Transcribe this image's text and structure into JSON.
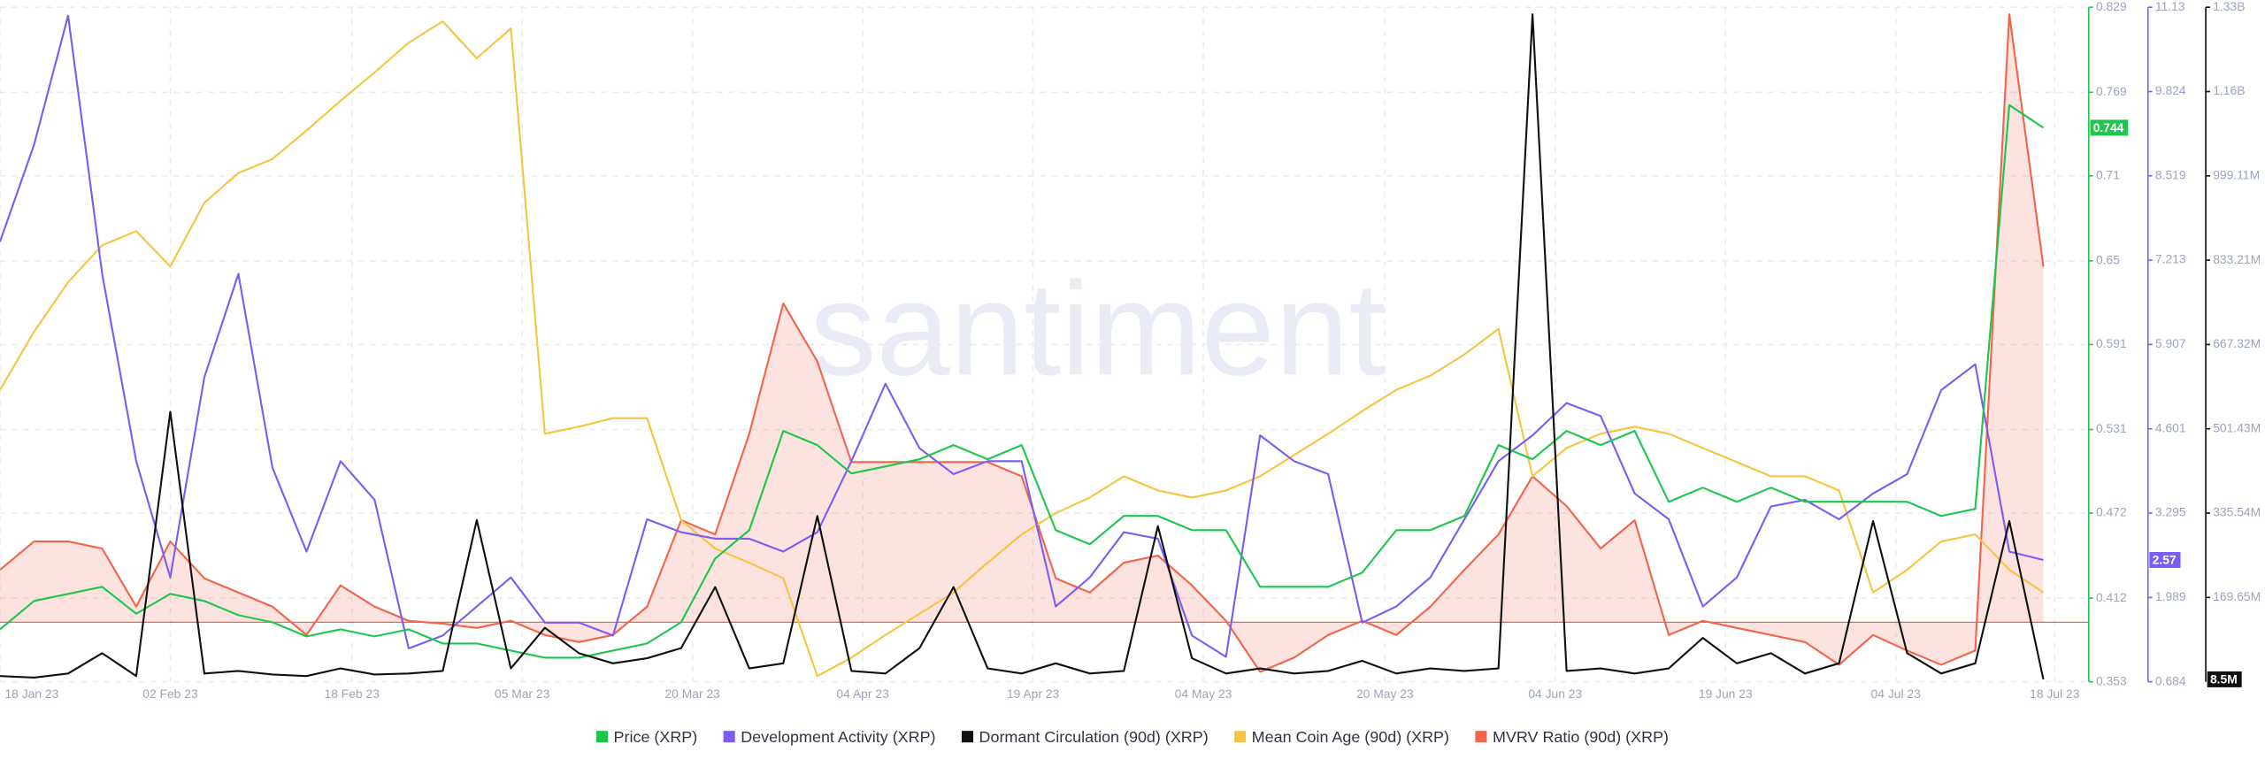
{
  "chart_data": {
    "type": "line",
    "watermark": "santiment",
    "x": [
      "2023-01-18",
      "2023-01-21",
      "2023-01-24",
      "2023-01-27",
      "2023-01-30",
      "2023-02-02",
      "2023-02-05",
      "2023-02-08",
      "2023-02-11",
      "2023-02-14",
      "2023-02-17",
      "2023-02-20",
      "2023-02-23",
      "2023-02-26",
      "2023-03-01",
      "2023-03-04",
      "2023-03-07",
      "2023-03-10",
      "2023-03-13",
      "2023-03-16",
      "2023-03-19",
      "2023-03-22",
      "2023-03-25",
      "2023-03-28",
      "2023-03-31",
      "2023-04-03",
      "2023-04-06",
      "2023-04-09",
      "2023-04-12",
      "2023-04-15",
      "2023-04-18",
      "2023-04-21",
      "2023-04-24",
      "2023-04-27",
      "2023-04-30",
      "2023-05-03",
      "2023-05-06",
      "2023-05-09",
      "2023-05-12",
      "2023-05-15",
      "2023-05-18",
      "2023-05-21",
      "2023-05-24",
      "2023-05-27",
      "2023-05-30",
      "2023-06-02",
      "2023-06-05",
      "2023-06-08",
      "2023-06-11",
      "2023-06-14",
      "2023-06-17",
      "2023-06-20",
      "2023-06-23",
      "2023-06-26",
      "2023-06-29",
      "2023-07-02",
      "2023-07-05",
      "2023-07-08",
      "2023-07-11",
      "2023-07-14",
      "2023-07-17"
    ],
    "xlim": [
      "2023-01-18",
      "2023-07-21"
    ],
    "xticks": [
      {
        "value": "2023-01-18",
        "label": "18 Jan 23"
      },
      {
        "value": "2023-02-02",
        "label": "02 Feb 23"
      },
      {
        "value": "2023-02-18",
        "label": "18 Feb 23"
      },
      {
        "value": "2023-03-05",
        "label": "05 Mar 23"
      },
      {
        "value": "2023-03-20",
        "label": "20 Mar 23"
      },
      {
        "value": "2023-04-04",
        "label": "04 Apr 23"
      },
      {
        "value": "2023-04-19",
        "label": "19 Apr 23"
      },
      {
        "value": "2023-05-04",
        "label": "04 May 23"
      },
      {
        "value": "2023-05-20",
        "label": "20 May 23"
      },
      {
        "value": "2023-06-04",
        "label": "04 Jun 23"
      },
      {
        "value": "2023-06-19",
        "label": "19 Jun 23"
      },
      {
        "value": "2023-07-04",
        "label": "04 Jul 23"
      },
      {
        "value": "2023-07-18",
        "label": "18 Jul 23"
      }
    ],
    "ylim": [
      0.353,
      0.829
    ],
    "yticks": [
      0.353,
      0.412,
      0.472,
      0.531,
      0.591,
      0.65,
      0.71,
      0.769,
      0.829
    ],
    "y2lim": [
      0.684,
      11.13
    ],
    "y2ticks": [
      0.684,
      1.989,
      3.295,
      4.601,
      5.907,
      7.213,
      8.519,
      9.824,
      11.13
    ],
    "y3lim": [
      3760000,
      1330890000
    ],
    "y3ticks": [
      {
        "value": 169650000,
        "label": "169.65M"
      },
      {
        "value": 335540000,
        "label": "335.54M"
      },
      {
        "value": 501430000,
        "label": "501.43M"
      },
      {
        "value": 667320000,
        "label": "667.32M"
      },
      {
        "value": 833210000,
        "label": "833.21M"
      },
      {
        "value": 999110000,
        "label": "999.11M"
      },
      {
        "value": 1164900000,
        "label": "1.16B"
      },
      {
        "value": 1330890000,
        "label": "1.33B"
      }
    ],
    "grid": true,
    "series": [
      {
        "name": "Price (XRP)",
        "color": "#1fc64d",
        "axis": "y",
        "last_label": true,
        "values": [
          0.39,
          0.41,
          0.415,
          0.42,
          0.401,
          0.415,
          0.41,
          0.4,
          0.395,
          0.385,
          0.39,
          0.385,
          0.39,
          0.38,
          0.38,
          0.375,
          0.37,
          0.37,
          0.375,
          0.38,
          0.395,
          0.44,
          0.46,
          0.53,
          0.52,
          0.5,
          0.505,
          0.51,
          0.52,
          0.51,
          0.52,
          0.46,
          0.45,
          0.47,
          0.47,
          0.46,
          0.46,
          0.42,
          0.42,
          0.42,
          0.43,
          0.46,
          0.46,
          0.47,
          0.52,
          0.51,
          0.53,
          0.52,
          0.53,
          0.48,
          0.49,
          0.48,
          0.49,
          0.48,
          0.48,
          0.48,
          0.48,
          0.47,
          0.475,
          0.76,
          0.744
        ]
      },
      {
        "name": "Development Activity (XRP)",
        "color": "#7b5cf5",
        "axis": "y2",
        "last_label": true,
        "values": [
          7.5,
          9.0,
          11.0,
          7.0,
          4.1,
          2.3,
          5.4,
          7.0,
          4.0,
          2.7,
          4.1,
          3.5,
          1.2,
          1.4,
          1.85,
          2.3,
          1.6,
          1.6,
          1.4,
          3.2,
          3.0,
          2.9,
          2.9,
          2.7,
          3.0,
          4.1,
          5.3,
          4.3,
          3.9,
          4.1,
          4.1,
          1.85,
          2.3,
          3.0,
          2.9,
          1.4,
          1.07,
          4.5,
          4.1,
          3.9,
          1.6,
          1.85,
          2.3,
          3.2,
          4.1,
          4.5,
          5.0,
          4.8,
          3.6,
          3.2,
          1.85,
          2.3,
          3.4,
          3.5,
          3.2,
          3.6,
          3.9,
          5.2,
          5.6,
          2.7,
          2.57
        ]
      },
      {
        "name": "Dormant Circulation (90d) (XRP)",
        "color": "#111111",
        "axis": "y3",
        "values": [
          15000000,
          12000000,
          20000000,
          60000000,
          15000000,
          535000000,
          20000000,
          25000000,
          18000000,
          15000000,
          30000000,
          18000000,
          20000000,
          25000000,
          322000000,
          30000000,
          110000000,
          60000000,
          40000000,
          50000000,
          70000000,
          190000000,
          30000000,
          40000000,
          330000000,
          25000000,
          20000000,
          70000000,
          190000000,
          30000000,
          20000000,
          40000000,
          20000000,
          25000000,
          310000000,
          50000000,
          20000000,
          30000000,
          20000000,
          25000000,
          45000000,
          20000000,
          30000000,
          25000000,
          30000000,
          1317000000,
          25000000,
          30000000,
          20000000,
          30000000,
          90000000,
          40000000,
          60000000,
          20000000,
          40000000,
          320000000,
          60000000,
          20000000,
          40000000,
          320000000,
          8500000
        ],
        "value_labels": [
          null,
          null,
          null,
          null,
          null,
          null,
          null,
          null,
          null,
          null,
          null,
          null,
          null,
          null,
          null,
          null,
          null,
          null,
          null,
          null,
          null,
          null,
          null,
          null,
          null,
          null,
          null,
          null,
          null,
          null,
          null,
          null,
          null,
          null,
          null,
          null,
          null,
          null,
          null,
          null,
          null,
          null,
          null,
          null,
          null,
          null,
          null,
          null,
          null,
          null,
          null,
          null,
          null,
          null,
          null,
          null,
          null,
          null,
          null,
          null,
          "8.5M"
        ]
      },
      {
        "name": "Mean Coin Age (90d) (XRP)",
        "color": "#f5c542",
        "axis": "y",
        "values": [
          0.559,
          0.6,
          0.635,
          0.661,
          0.671,
          0.646,
          0.691,
          0.712,
          0.722,
          0.742,
          0.763,
          0.783,
          0.804,
          0.819,
          0.793,
          0.814,
          0.528,
          0.533,
          0.539,
          0.539,
          0.467,
          0.447,
          0.437,
          0.426,
          0.357,
          0.37,
          0.386,
          0.401,
          0.416,
          0.437,
          0.457,
          0.472,
          0.483,
          0.498,
          0.488,
          0.483,
          0.488,
          0.498,
          0.513,
          0.528,
          0.544,
          0.559,
          0.569,
          0.584,
          0.602,
          0.498,
          0.518,
          0.528,
          0.533,
          0.528,
          0.518,
          0.508,
          0.498,
          0.498,
          0.488,
          0.416,
          0.432,
          0.452,
          0.457,
          0.432,
          0.416
        ]
      },
      {
        "name": "MVRV Ratio (90d) (XRP)",
        "color": "#f0654b",
        "axis": "y",
        "fill_to": 0.395,
        "values": [
          0.432,
          0.452,
          0.452,
          0.447,
          0.406,
          0.452,
          0.426,
          0.416,
          0.406,
          0.386,
          0.421,
          0.406,
          0.396,
          0.394,
          0.391,
          0.396,
          0.386,
          0.381,
          0.386,
          0.406,
          0.467,
          0.457,
          0.528,
          0.62,
          0.579,
          0.508,
          0.508,
          0.508,
          0.508,
          0.508,
          0.498,
          0.426,
          0.416,
          0.437,
          0.442,
          0.421,
          0.396,
          0.36,
          0.37,
          0.386,
          0.396,
          0.386,
          0.406,
          0.432,
          0.457,
          0.498,
          0.477,
          0.447,
          0.467,
          0.386,
          0.396,
          0.391,
          0.386,
          0.381,
          0.365,
          0.386,
          0.375,
          0.365,
          0.375,
          0.824,
          0.646
        ]
      }
    ]
  }
}
